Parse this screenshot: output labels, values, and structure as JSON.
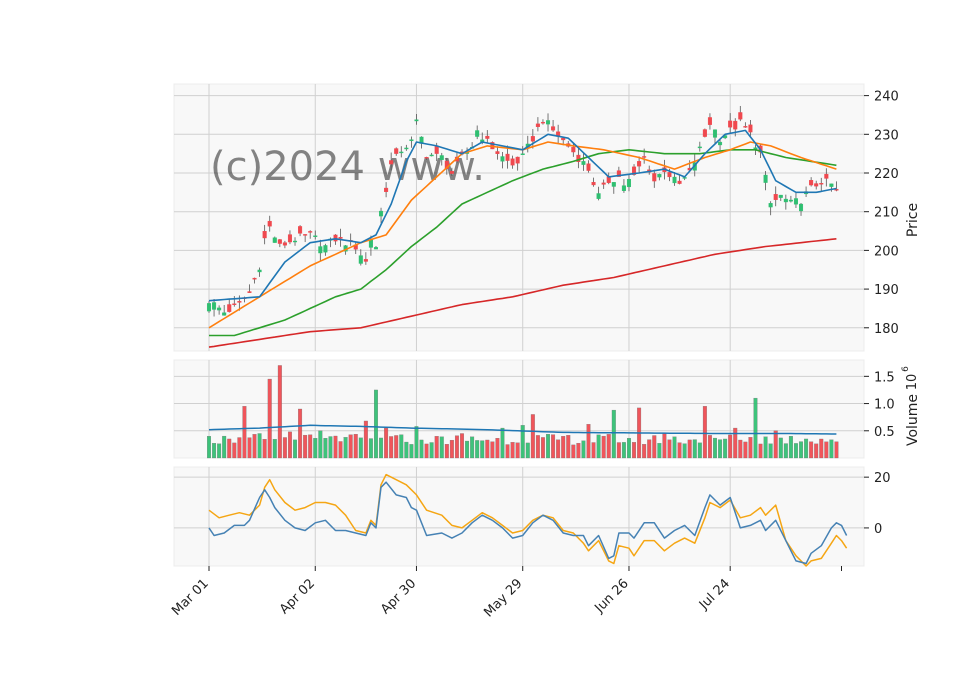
{
  "watermark": "(c)2024 www.",
  "chart_data": {
    "type": "candlestick",
    "ylabel_price": "Price",
    "ylabel_volume": "Volume",
    "volume_exponent": "10",
    "volume_exponent_power": "6",
    "x_ticks": [
      {
        "day": 0,
        "label": "Mar 01"
      },
      {
        "day": 21,
        "label": "Apr 02"
      },
      {
        "day": 41,
        "label": "Apr 30"
      },
      {
        "day": 62,
        "label": "May 29"
      },
      {
        "day": 83,
        "label": "Jun 26"
      },
      {
        "day": 103,
        "label": "Jul 24"
      }
    ],
    "n_days": 125,
    "price_ylim": [
      174,
      243
    ],
    "price_ticks": [
      180,
      190,
      200,
      210,
      220,
      230,
      240
    ],
    "volume_ylim": [
      0,
      1.8
    ],
    "volume_ticks": [
      0.5,
      1.0,
      1.5
    ],
    "osc_ylim": [
      -15,
      24
    ],
    "osc_ticks": [
      0,
      20
    ],
    "colors": {
      "up": "#2fbf71",
      "down": "#f0484e",
      "sma_fast": "#1f77b4",
      "sma_mid": "#ff7f0e",
      "sma_slow": "#2ca02c",
      "sma_long": "#d62728",
      "vol_avg": "#1f77b4",
      "osc_a": "#4682b4",
      "osc_b": "#f5a614"
    },
    "close_anchors": [
      [
        0,
        187
      ],
      [
        3,
        184
      ],
      [
        6,
        186
      ],
      [
        8,
        189
      ],
      [
        10,
        196
      ],
      [
        11,
        203
      ],
      [
        12,
        206
      ],
      [
        14,
        201
      ],
      [
        17,
        203
      ],
      [
        20,
        204
      ],
      [
        21,
        203
      ],
      [
        23,
        201
      ],
      [
        25,
        203
      ],
      [
        27,
        202
      ],
      [
        29,
        201
      ],
      [
        31,
        197
      ],
      [
        32,
        203
      ],
      [
        33,
        201
      ],
      [
        34,
        210
      ],
      [
        36,
        222
      ],
      [
        38,
        226
      ],
      [
        40,
        228
      ],
      [
        41,
        233
      ],
      [
        43,
        225
      ],
      [
        46,
        224
      ],
      [
        48,
        220
      ],
      [
        50,
        224
      ],
      [
        52,
        227
      ],
      [
        53,
        231
      ],
      [
        55,
        228
      ],
      [
        58,
        224
      ],
      [
        60,
        222
      ],
      [
        62,
        224
      ],
      [
        64,
        229
      ],
      [
        66,
        234
      ],
      [
        68,
        231
      ],
      [
        71,
        227
      ],
      [
        73,
        224
      ],
      [
        75,
        221
      ],
      [
        77,
        214
      ],
      [
        79,
        218
      ],
      [
        81,
        219
      ],
      [
        82,
        217
      ],
      [
        84,
        219
      ],
      [
        86,
        224
      ],
      [
        88,
        218
      ],
      [
        90,
        221
      ],
      [
        92,
        218
      ],
      [
        93,
        217
      ],
      [
        95,
        220
      ],
      [
        97,
        226
      ],
      [
        99,
        233
      ],
      [
        101,
        229
      ],
      [
        103,
        231
      ],
      [
        105,
        233
      ],
      [
        107,
        230
      ],
      [
        109,
        225
      ],
      [
        111,
        212
      ],
      [
        113,
        214
      ],
      [
        115,
        212
      ],
      [
        117,
        213
      ],
      [
        119,
        216
      ],
      [
        121,
        218
      ],
      [
        123,
        217
      ],
      [
        124,
        215
      ]
    ],
    "sma_fast": [
      [
        0,
        187
      ],
      [
        10,
        188
      ],
      [
        15,
        197
      ],
      [
        20,
        202
      ],
      [
        25,
        203
      ],
      [
        30,
        202
      ],
      [
        33,
        204
      ],
      [
        36,
        212
      ],
      [
        39,
        223
      ],
      [
        41,
        228
      ],
      [
        45,
        227
      ],
      [
        50,
        225
      ],
      [
        54,
        228
      ],
      [
        58,
        227
      ],
      [
        62,
        226
      ],
      [
        67,
        230
      ],
      [
        71,
        229
      ],
      [
        75,
        224
      ],
      [
        79,
        219
      ],
      [
        85,
        220
      ],
      [
        90,
        221
      ],
      [
        94,
        219
      ],
      [
        98,
        225
      ],
      [
        102,
        230
      ],
      [
        106,
        231
      ],
      [
        109,
        226
      ],
      [
        112,
        218
      ],
      [
        116,
        215
      ],
      [
        120,
        215
      ],
      [
        124,
        216
      ]
    ],
    "sma_mid": [
      [
        0,
        180
      ],
      [
        10,
        188
      ],
      [
        20,
        196
      ],
      [
        30,
        202
      ],
      [
        35,
        204
      ],
      [
        40,
        213
      ],
      [
        45,
        219
      ],
      [
        50,
        225
      ],
      [
        55,
        227
      ],
      [
        62,
        226
      ],
      [
        67,
        228
      ],
      [
        72,
        227
      ],
      [
        78,
        226
      ],
      [
        85,
        224
      ],
      [
        92,
        221
      ],
      [
        98,
        224
      ],
      [
        103,
        226
      ],
      [
        107,
        228
      ],
      [
        111,
        227
      ],
      [
        117,
        224
      ],
      [
        124,
        221
      ]
    ],
    "sma_slow": [
      [
        0,
        178
      ],
      [
        5,
        178
      ],
      [
        10,
        180
      ],
      [
        15,
        182
      ],
      [
        20,
        185
      ],
      [
        25,
        188
      ],
      [
        30,
        190
      ],
      [
        35,
        195
      ],
      [
        40,
        201
      ],
      [
        45,
        206
      ],
      [
        50,
        212
      ],
      [
        55,
        215
      ],
      [
        60,
        218
      ],
      [
        66,
        221
      ],
      [
        72,
        223
      ],
      [
        77,
        225
      ],
      [
        83,
        226
      ],
      [
        90,
        225
      ],
      [
        97,
        225
      ],
      [
        103,
        226
      ],
      [
        108,
        226
      ],
      [
        114,
        224
      ],
      [
        124,
        222
      ]
    ],
    "sma_long": [
      [
        0,
        175
      ],
      [
        10,
        177
      ],
      [
        20,
        179
      ],
      [
        30,
        180
      ],
      [
        40,
        183
      ],
      [
        50,
        186
      ],
      [
        60,
        188
      ],
      [
        70,
        191
      ],
      [
        80,
        193
      ],
      [
        90,
        196
      ],
      [
        100,
        199
      ],
      [
        110,
        201
      ],
      [
        124,
        203
      ]
    ],
    "volume_peaks": [
      [
        0,
        0.4
      ],
      [
        4,
        0.35
      ],
      [
        7,
        0.95
      ],
      [
        10,
        0.45
      ],
      [
        12,
        1.45
      ],
      [
        14,
        1.7
      ],
      [
        16,
        0.48
      ],
      [
        18,
        0.9
      ],
      [
        22,
        0.5
      ],
      [
        27,
        0.38
      ],
      [
        31,
        0.68
      ],
      [
        33,
        1.25
      ],
      [
        35,
        0.55
      ],
      [
        41,
        0.58
      ],
      [
        45,
        0.4
      ],
      [
        50,
        0.45
      ],
      [
        58,
        0.55
      ],
      [
        62,
        0.6
      ],
      [
        64,
        0.8
      ],
      [
        70,
        0.4
      ],
      [
        75,
        0.62
      ],
      [
        80,
        0.88
      ],
      [
        85,
        0.92
      ],
      [
        90,
        0.45
      ],
      [
        98,
        0.95
      ],
      [
        104,
        0.55
      ],
      [
        108,
        1.1
      ],
      [
        112,
        0.5
      ],
      [
        118,
        0.35
      ],
      [
        124,
        0.3
      ]
    ],
    "vol_avg": [
      [
        0,
        0.52
      ],
      [
        10,
        0.55
      ],
      [
        20,
        0.6
      ],
      [
        30,
        0.58
      ],
      [
        40,
        0.55
      ],
      [
        55,
        0.52
      ],
      [
        70,
        0.47
      ],
      [
        85,
        0.46
      ],
      [
        100,
        0.45
      ],
      [
        115,
        0.45
      ],
      [
        124,
        0.44
      ]
    ],
    "osc_a": [
      [
        0,
        0
      ],
      [
        1,
        -3
      ],
      [
        3,
        -2
      ],
      [
        5,
        1
      ],
      [
        7,
        1
      ],
      [
        8,
        3
      ],
      [
        10,
        12
      ],
      [
        11,
        15
      ],
      [
        12,
        12
      ],
      [
        13,
        8
      ],
      [
        15,
        3
      ],
      [
        17,
        0
      ],
      [
        19,
        -1
      ],
      [
        21,
        2
      ],
      [
        23,
        3
      ],
      [
        25,
        -1
      ],
      [
        27,
        -1
      ],
      [
        29,
        -2
      ],
      [
        31,
        -3
      ],
      [
        32,
        2
      ],
      [
        33,
        0
      ],
      [
        34,
        16
      ],
      [
        35,
        18
      ],
      [
        37,
        13
      ],
      [
        39,
        12
      ],
      [
        40,
        8
      ],
      [
        41,
        7
      ],
      [
        43,
        -3
      ],
      [
        46,
        -2
      ],
      [
        48,
        -4
      ],
      [
        50,
        -2
      ],
      [
        52,
        2
      ],
      [
        54,
        5
      ],
      [
        56,
        3
      ],
      [
        58,
        0
      ],
      [
        60,
        -4
      ],
      [
        62,
        -3
      ],
      [
        64,
        2
      ],
      [
        66,
        5
      ],
      [
        68,
        3
      ],
      [
        70,
        -2
      ],
      [
        72,
        -3
      ],
      [
        74,
        -3
      ],
      [
        75,
        -7
      ],
      [
        77,
        -3
      ],
      [
        79,
        -12
      ],
      [
        80,
        -11
      ],
      [
        81,
        -2
      ],
      [
        83,
        -2
      ],
      [
        84,
        -4
      ],
      [
        86,
        2
      ],
      [
        88,
        2
      ],
      [
        90,
        -4
      ],
      [
        92,
        -1
      ],
      [
        94,
        1
      ],
      [
        96,
        -3
      ],
      [
        98,
        8
      ],
      [
        99,
        13
      ],
      [
        101,
        9
      ],
      [
        103,
        12
      ],
      [
        105,
        0
      ],
      [
        107,
        1
      ],
      [
        109,
        3
      ],
      [
        110,
        -1
      ],
      [
        112,
        3
      ],
      [
        114,
        -5
      ],
      [
        116,
        -13
      ],
      [
        118,
        -14
      ],
      [
        119,
        -10
      ],
      [
        121,
        -7
      ],
      [
        123,
        0
      ],
      [
        124,
        2
      ],
      [
        125,
        1
      ],
      [
        126,
        -3
      ]
    ],
    "osc_b": [
      [
        0,
        7
      ],
      [
        2,
        4
      ],
      [
        4,
        5
      ],
      [
        6,
        6
      ],
      [
        8,
        5
      ],
      [
        10,
        9
      ],
      [
        11,
        16
      ],
      [
        12,
        19
      ],
      [
        13,
        15
      ],
      [
        15,
        10
      ],
      [
        17,
        7
      ],
      [
        19,
        8
      ],
      [
        21,
        10
      ],
      [
        23,
        10
      ],
      [
        25,
        9
      ],
      [
        27,
        5
      ],
      [
        29,
        -1
      ],
      [
        31,
        -2
      ],
      [
        32,
        3
      ],
      [
        33,
        1
      ],
      [
        34,
        17
      ],
      [
        35,
        21
      ],
      [
        37,
        19
      ],
      [
        39,
        17
      ],
      [
        40,
        15
      ],
      [
        41,
        13
      ],
      [
        43,
        7
      ],
      [
        46,
        5
      ],
      [
        48,
        1
      ],
      [
        50,
        0
      ],
      [
        52,
        3
      ],
      [
        54,
        6
      ],
      [
        56,
        4
      ],
      [
        58,
        1
      ],
      [
        60,
        -2
      ],
      [
        62,
        -1
      ],
      [
        64,
        3
      ],
      [
        66,
        5
      ],
      [
        68,
        4
      ],
      [
        70,
        -1
      ],
      [
        72,
        -2
      ],
      [
        74,
        -6
      ],
      [
        75,
        -9
      ],
      [
        77,
        -5
      ],
      [
        79,
        -13
      ],
      [
        80,
        -14
      ],
      [
        81,
        -7
      ],
      [
        83,
        -8
      ],
      [
        84,
        -11
      ],
      [
        86,
        -5
      ],
      [
        88,
        -5
      ],
      [
        90,
        -9
      ],
      [
        92,
        -6
      ],
      [
        94,
        -4
      ],
      [
        96,
        -6
      ],
      [
        98,
        4
      ],
      [
        99,
        10
      ],
      [
        101,
        8
      ],
      [
        103,
        11
      ],
      [
        105,
        4
      ],
      [
        107,
        5
      ],
      [
        109,
        8
      ],
      [
        110,
        5
      ],
      [
        112,
        9
      ],
      [
        114,
        -5
      ],
      [
        116,
        -11
      ],
      [
        118,
        -15
      ],
      [
        119,
        -13
      ],
      [
        121,
        -12
      ],
      [
        123,
        -6
      ],
      [
        124,
        -3
      ],
      [
        125,
        -5
      ],
      [
        126,
        -8
      ]
    ]
  }
}
